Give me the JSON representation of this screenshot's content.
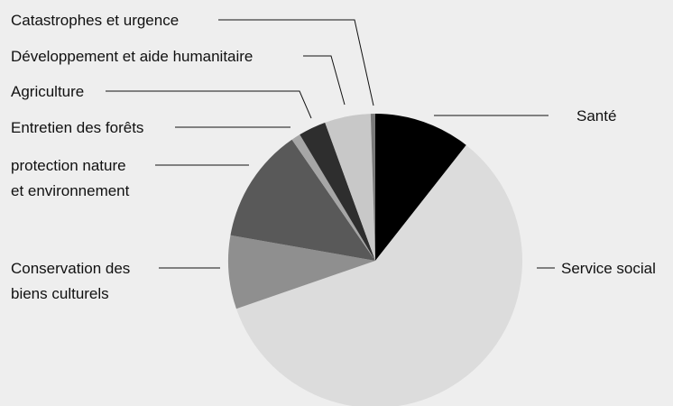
{
  "chart_data": {
    "type": "pie",
    "title": "",
    "legend": "none",
    "start_angle_deg": 0,
    "direction": "clockwise",
    "slices": [
      {
        "label": "Santé",
        "label_lines": [
          "Santé"
        ],
        "value": 10.5,
        "color": "#000000"
      },
      {
        "label": "Service social",
        "label_lines": [
          "Service social"
        ],
        "value": 58.5,
        "color": "#dcdcdc"
      },
      {
        "label": "Conservation des biens culturels",
        "label_lines": [
          "Conservation des",
          "biens culturels"
        ],
        "value": 8.0,
        "color": "#8f8f8f"
      },
      {
        "label": "protection nature et environnement",
        "label_lines": [
          "protection nature",
          "et environnement"
        ],
        "value": 12.5,
        "color": "#595959"
      },
      {
        "label": "Entretien des forêts",
        "label_lines": [
          "Entretien des forêts"
        ],
        "value": 1.0,
        "color": "#a6a6a6"
      },
      {
        "label": "Agriculture",
        "label_lines": [
          "Agriculture"
        ],
        "value": 3.0,
        "color": "#2e2e2e"
      },
      {
        "label": "Développement et aide humanitaire",
        "label_lines": [
          "Développement et aide humanitaire"
        ],
        "value": 5.0,
        "color": "#c8c8c8"
      },
      {
        "label": "Catastrophes et urgence",
        "label_lines": [
          "Catastrophes et urgence"
        ],
        "value": 0.5,
        "color": "#7a7a7a"
      }
    ]
  }
}
